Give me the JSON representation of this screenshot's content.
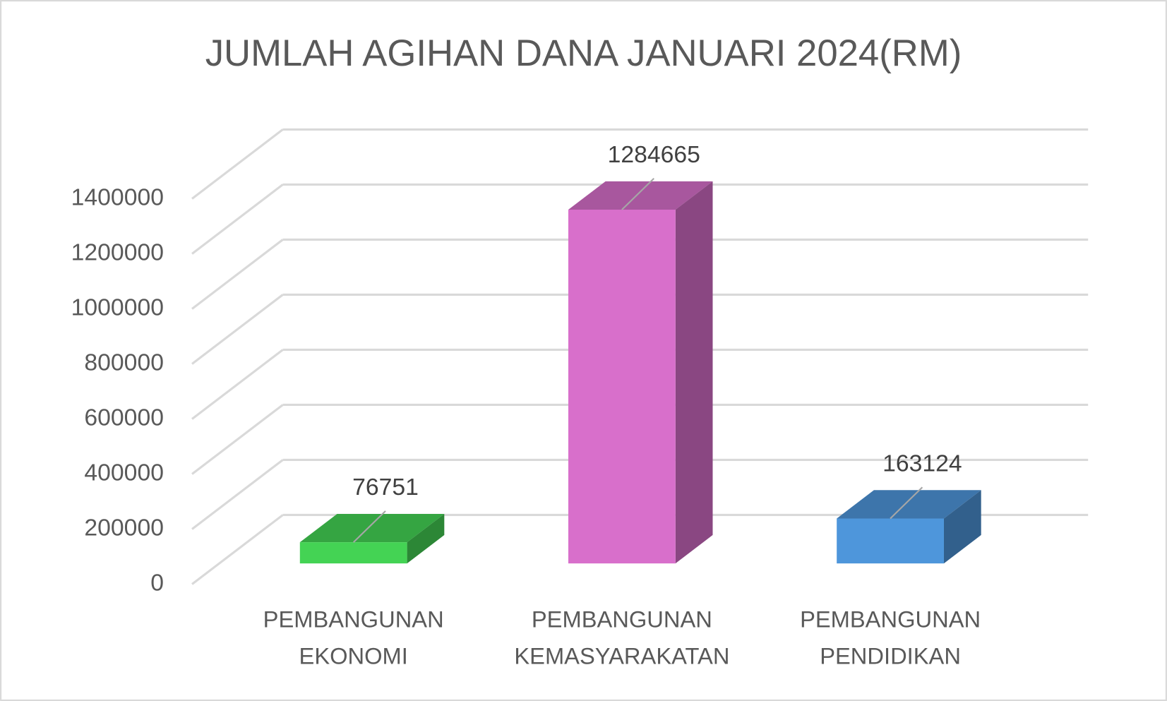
{
  "chart_data": {
    "type": "bar3d",
    "title": "JUMLAH AGIHAN DANA JANUARI 2024(RM)",
    "categories": [
      "PEMBANGUNAN EKONOMI",
      "PEMBANGUNAN KEMASYARAKATAN",
      "PEMBANGUNAN PENDIDIKAN"
    ],
    "values": [
      76751,
      1284665,
      163124
    ],
    "colors": [
      "#44d354",
      "#d86fcb",
      "#4e96db"
    ],
    "ylim": [
      0,
      1400000
    ],
    "yticks": [
      0,
      200000,
      400000,
      600000,
      800000,
      1000000,
      1200000,
      1400000
    ],
    "grid": true
  }
}
